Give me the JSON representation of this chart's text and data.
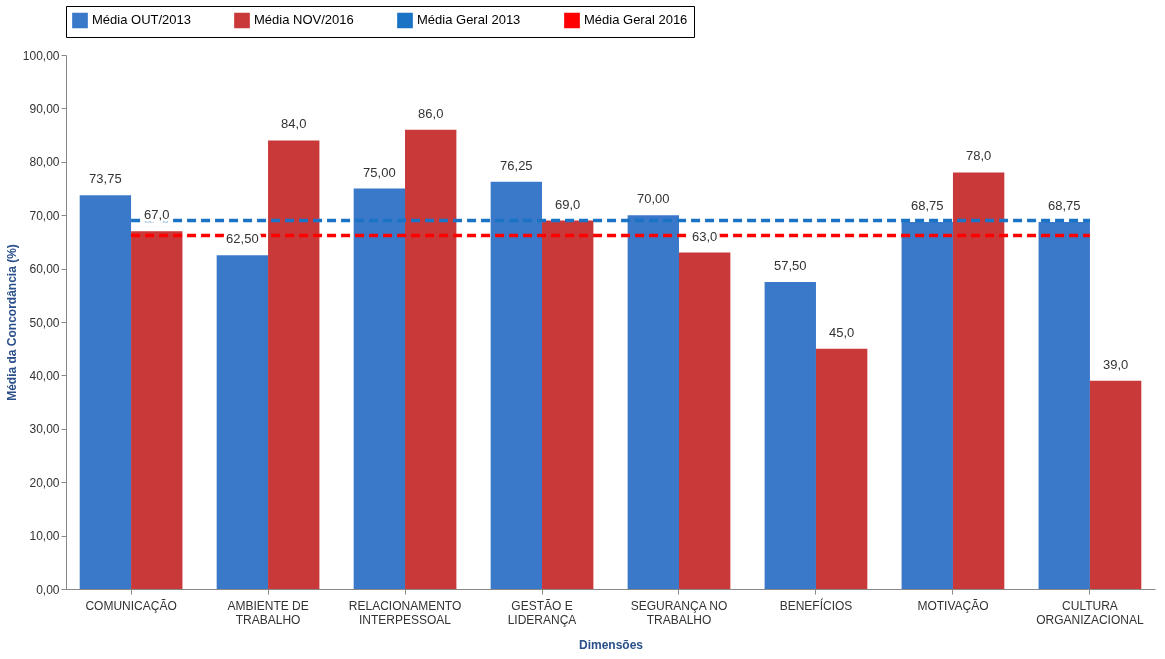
{
  "chart_data": {
    "type": "bar",
    "xlabel": "Dimensões",
    "ylabel": "Média da Concordância  (%)",
    "categories": [
      "COMUNICAÇÃO",
      "AMBIENTE DE TRABALHO",
      "RELACIONAMENTO INTERPESSOAL",
      "GESTÃO E LIDERANÇA",
      "SEGURANÇA NO TRABALHO",
      "BENEFÍCIOS",
      "MOTIVAÇÃO",
      "CULTURA ORGANIZACIONAL"
    ],
    "series": [
      {
        "name": "Média OUT/2013",
        "color": "#3a78c9",
        "values": [
          73.75,
          62.5,
          75,
          76.25,
          70,
          57.5,
          68.75,
          68.75
        ],
        "value_labels": [
          "73,75",
          "62,50",
          "75,00",
          "76,25",
          "70,00",
          "57,50",
          "68,75",
          "68,75"
        ]
      },
      {
        "name": "Média NOV/2016",
        "color": "#c9393a",
        "values": [
          67,
          84,
          86,
          69,
          63,
          45,
          78,
          39
        ],
        "value_labels": [
          "67,0",
          "84,0",
          "86,0",
          "69,0",
          "63,0",
          "45,0",
          "78,0",
          "39,0"
        ]
      },
      {
        "name": "Média Geral 2013",
        "type": "line",
        "line_style": "dashed",
        "color": "#1a73c4",
        "values": [
          69,
          69,
          69,
          69,
          69,
          69,
          69,
          69
        ]
      },
      {
        "name": "Média Geral 2016",
        "type": "line",
        "line_style": "dashed",
        "color": "#ff0000",
        "values": [
          66.2,
          66.2,
          66.2,
          66.2,
          66.2,
          66.2,
          66.2,
          66.2
        ]
      }
    ],
    "ylim": [
      0,
      100
    ],
    "yticks": [
      {
        "value": 0,
        "label": "0,00"
      },
      {
        "value": 10,
        "label": "10,00"
      },
      {
        "value": 20,
        "label": "20,00"
      },
      {
        "value": 30,
        "label": "30,00"
      },
      {
        "value": 40,
        "label": "40,00"
      },
      {
        "value": 50,
        "label": "50,00"
      },
      {
        "value": 60,
        "label": "60,00"
      },
      {
        "value": 70,
        "label": "70,00"
      },
      {
        "value": 80,
        "label": "80,00"
      },
      {
        "value": 90,
        "label": "90,00"
      },
      {
        "value": 100,
        "label": "100,00"
      }
    ],
    "grid": false,
    "legend": "top",
    "marker": "none"
  }
}
